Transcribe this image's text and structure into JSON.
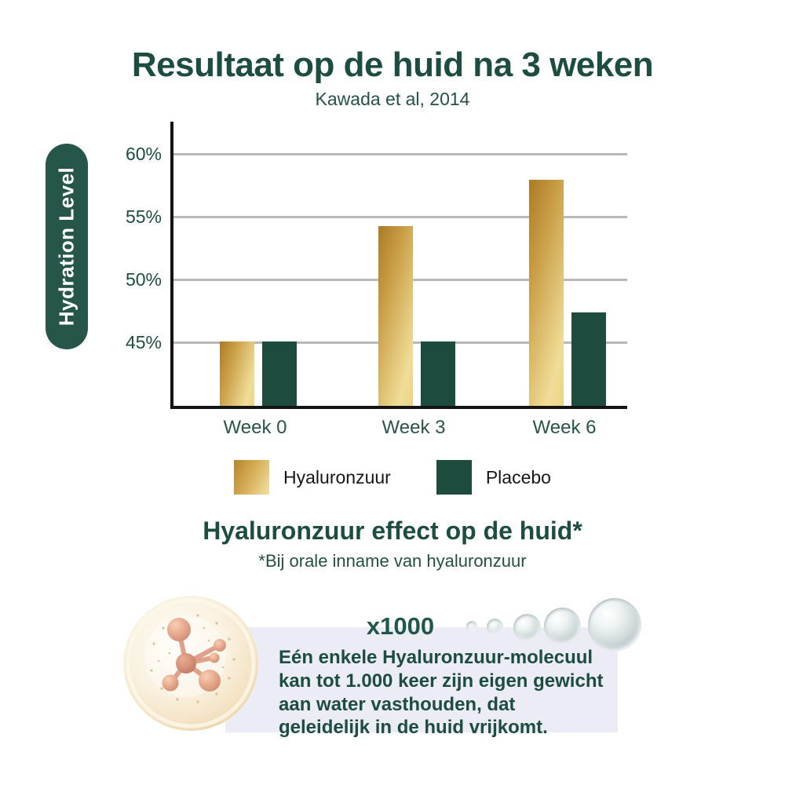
{
  "header": {
    "title": "Resultaat op de huid na 3 weken",
    "subtitle": "Kawada et al, 2014"
  },
  "chart_data": {
    "type": "bar",
    "title": "Resultaat op de huid na 3 weken",
    "subtitle": "Kawada et al, 2014",
    "ylabel": "Hydration Level",
    "xlabel": "",
    "categories": [
      "Week 0",
      "Week 3",
      "Week 6"
    ],
    "series": [
      {
        "name": "Hyaluronzuur",
        "color": "gold-gradient",
        "values": [
          45,
          54.2,
          57.9
        ]
      },
      {
        "name": "Placebo",
        "color": "#1d4b3e",
        "values": [
          45,
          45,
          47.3
        ]
      }
    ],
    "yticks": [
      "60%",
      "55%",
      "50%",
      "45%"
    ],
    "ytick_values": [
      60,
      55,
      50,
      45
    ],
    "ylim": [
      40,
      62
    ],
    "grid": true,
    "legend_position": "bottom"
  },
  "footer": {
    "heading": "Hyaluronzuur effect op de huid*",
    "subheading": "*Bij orale inname van hyaluronzuur",
    "multiplier": "x1000",
    "description": "Eén enkele Hyaluronzuur-molecuul kan tot 1.000 keer zijn eigen gewicht aan water vasthouden, dat geleidelijk in de huid vrijkomt."
  },
  "icons": {
    "molecule_bubble": "molecule-bubble-illustration",
    "water_bubbles": "water-bubble-icon"
  },
  "colors": {
    "dark_green_text": "#1d4d40",
    "pill_green": "#26564a",
    "bar_green": "#1d4b3e",
    "gold_dark": "#a97b26",
    "gold_light": "#f0dd98",
    "gridline": "#b8b8b8",
    "axis": "#141414",
    "infobox_lavender": "#ebecf6",
    "legend_text": "#161616",
    "background": "#ffffff"
  }
}
